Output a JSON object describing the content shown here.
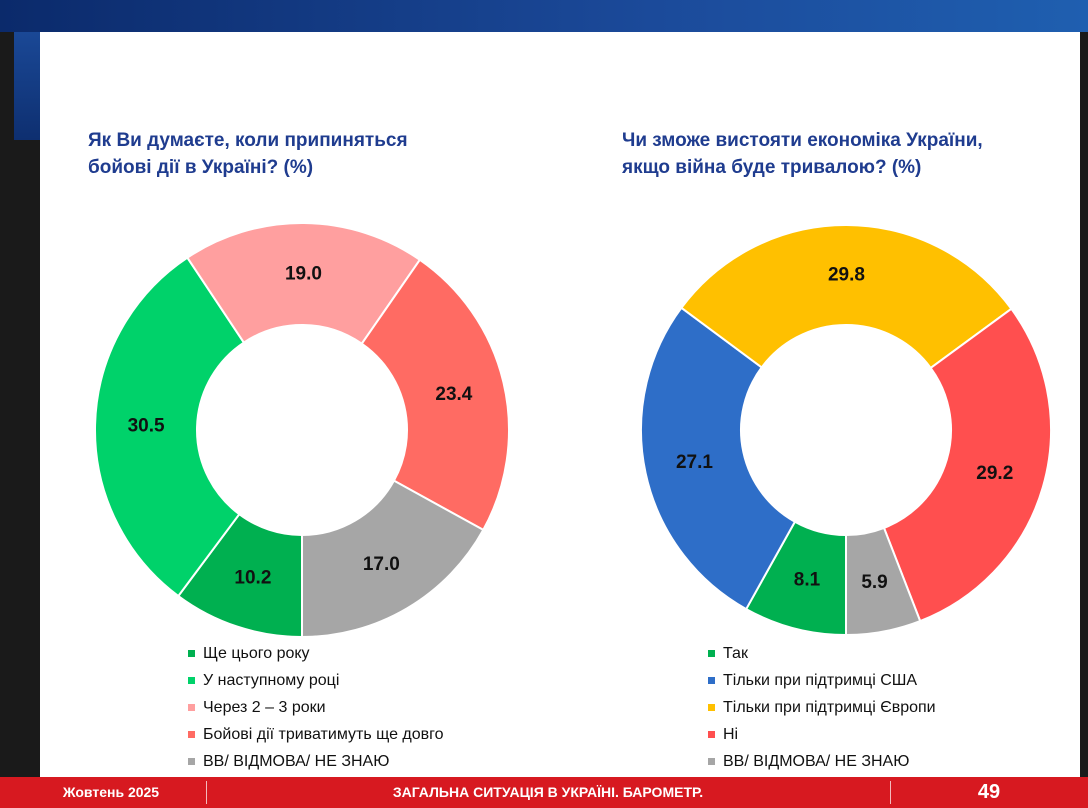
{
  "footer": {
    "date": "Жовтень 2025",
    "caption": "ЗАГАЛЬНА СИТУАЦІЯ В УКРАЇНІ. БАРОМЕТР.",
    "page_number": "49"
  },
  "chart_data": [
    {
      "type": "pie",
      "title": "Як Ви думаєте, коли припиняться бойові дії в Україні? (%)",
      "title_lines": [
        "Як Ви думаєте, коли припиняться",
        "бойові дії в Україні? (%)"
      ],
      "donut": true,
      "categories": [
        "Ще цього року",
        "У наступному році",
        "Через 2 – 3 роки",
        "Бойові дії триватимуть ще довго",
        "ВВ/ ВІДМОВА/ НЕ ЗНАЮ"
      ],
      "values": [
        10.2,
        30.5,
        19.0,
        23.4,
        17.0
      ],
      "labels": [
        "10.2",
        "30.5",
        "19.0",
        "23.4",
        "17.0"
      ],
      "colors": [
        "#00b050",
        "#00d26a",
        "#ff9f9f",
        "#ff6b63",
        "#a6a6a6"
      ],
      "legend": "bottom"
    },
    {
      "type": "pie",
      "title": "Чи зможе вистояти економіка України, якщо війна буде тривалою? (%)",
      "title_lines": [
        "Чи зможе вистояти економіка України,",
        "якщо війна буде тривалою? (%)"
      ],
      "donut": true,
      "categories": [
        "Так",
        "Тільки при підтримці США",
        "Тільки при підтримці Європи",
        "Ні",
        "ВВ/ ВІДМОВА/ НЕ ЗНАЮ"
      ],
      "values": [
        8.1,
        27.1,
        29.8,
        29.2,
        5.9
      ],
      "labels": [
        "8.1",
        "27.1",
        "29.8",
        "29.2",
        "5.9"
      ],
      "colors": [
        "#00b050",
        "#2e6ec8",
        "#ffc000",
        "#ff4f4f",
        "#a6a6a6"
      ],
      "legend": "bottom"
    }
  ]
}
